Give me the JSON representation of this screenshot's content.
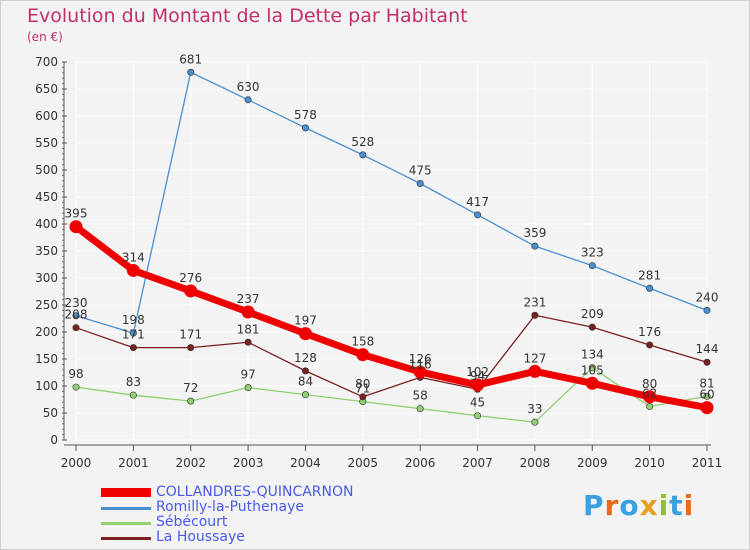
{
  "header": {
    "title": "Evolution du Montant de la Dette par Habitant",
    "subtitle": "(en €)"
  },
  "logo": {
    "text": "Proxiti"
  },
  "chart_data": {
    "type": "line",
    "x": [
      "2000",
      "2001",
      "2002",
      "2003",
      "2004",
      "2005",
      "2006",
      "2007",
      "2008",
      "2009",
      "2010",
      "2011"
    ],
    "ylim": [
      0,
      700
    ],
    "yticks": [
      0,
      50,
      100,
      150,
      200,
      250,
      300,
      350,
      400,
      450,
      500,
      550,
      600,
      650,
      700
    ],
    "grid": true,
    "legend_position": "bottom-left",
    "series": [
      {
        "name": "Romilly-la-Puthenaye",
        "color": "#4a90d0",
        "values": [
          230,
          198,
          681,
          630,
          578,
          528,
          475,
          417,
          359,
          323,
          281,
          240
        ]
      },
      {
        "name": "Sébécourt",
        "color": "#90d070",
        "values": [
          98,
          83,
          72,
          97,
          84,
          71,
          58,
          45,
          33,
          134,
          62,
          81
        ]
      },
      {
        "name": "La Houssaye",
        "color": "#7a2020",
        "values": [
          208,
          171,
          171,
          181,
          128,
          80,
          116,
          94,
          231,
          209,
          176,
          144
        ]
      },
      {
        "name": "COLLANDRES-QUINCARNON",
        "color": "#ee0000",
        "values": [
          395,
          314,
          276,
          237,
          197,
          158,
          126,
          102,
          127,
          105,
          80,
          60
        ]
      }
    ],
    "data_labels": [
      {
        "series": 0,
        "labels": [
          "230",
          "198",
          "681",
          "630",
          "578",
          "528",
          "475",
          "417",
          "359",
          "323",
          "281",
          "240"
        ]
      },
      {
        "series": 1,
        "labels": [
          "98",
          "83",
          "72",
          "97",
          "84",
          "71",
          "58",
          "45",
          "33",
          "134",
          "62",
          "81"
        ]
      },
      {
        "series": 2,
        "labels": [
          "208",
          "171",
          "171",
          "181",
          "128",
          "80",
          "116",
          "94",
          "231",
          "209",
          "176",
          "144"
        ]
      },
      {
        "series": 3,
        "labels": [
          "395",
          "314",
          "276",
          "237",
          "197",
          "158",
          "126",
          "102",
          "127",
          "105",
          "80",
          "60"
        ]
      }
    ]
  }
}
